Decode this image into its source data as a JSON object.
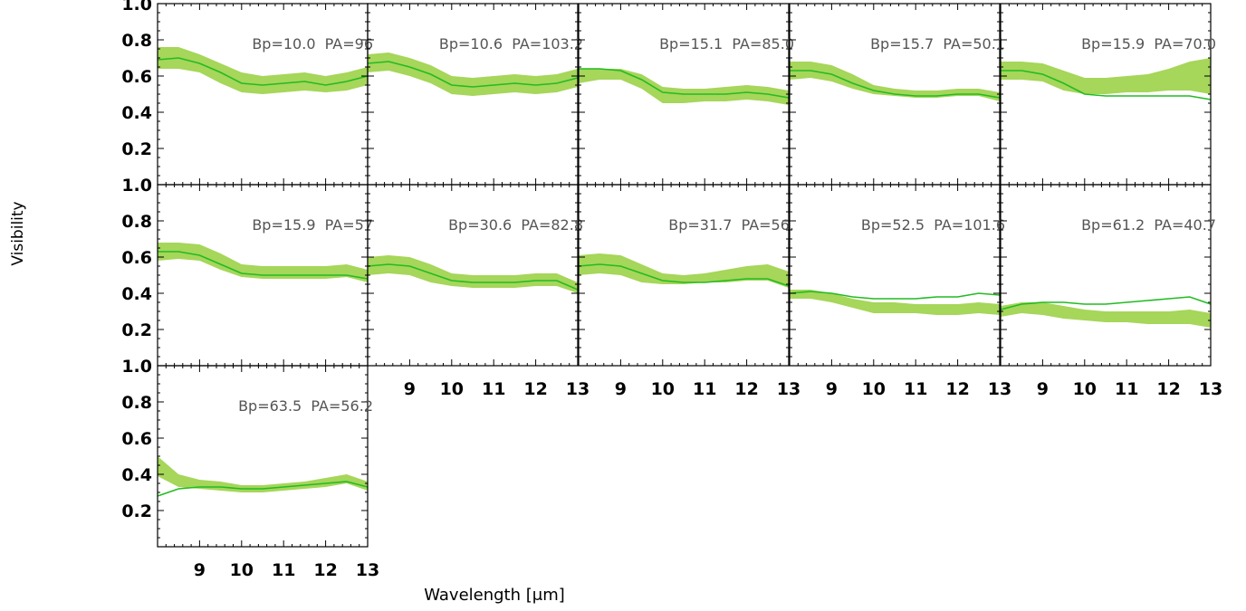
{
  "chart_data": {
    "type": "line",
    "layout": "small-multiples",
    "ylabel": "Visibility",
    "xlabel": "Wavelength [μm]",
    "xlim": [
      8.0,
      13.0
    ],
    "ylim": [
      0.0,
      1.0
    ],
    "xticks": [
      9,
      10,
      11,
      12,
      13
    ],
    "yticks": [
      0.2,
      0.4,
      0.6,
      0.8,
      1.0
    ],
    "xtick_labels": [
      "9",
      "10",
      "11",
      "12",
      "13"
    ],
    "ytick_labels": [
      "0.2",
      "0.4",
      "0.6",
      "0.8",
      "1.0"
    ],
    "colors": {
      "model_line": "#22bb22",
      "band_fill": "#a6d65a"
    },
    "x": [
      8.0,
      8.5,
      9.0,
      9.5,
      10.0,
      10.5,
      11.0,
      11.5,
      12.0,
      12.5,
      13.0
    ],
    "panels": [
      {
        "label": "Bp=10.0  PA=96",
        "model": [
          0.69,
          0.7,
          0.67,
          0.62,
          0.56,
          0.55,
          0.56,
          0.57,
          0.55,
          0.57,
          0.6
        ],
        "band_lo": [
          0.64,
          0.64,
          0.62,
          0.56,
          0.51,
          0.5,
          0.51,
          0.52,
          0.51,
          0.52,
          0.55
        ],
        "band_hi": [
          0.76,
          0.76,
          0.72,
          0.67,
          0.62,
          0.6,
          0.61,
          0.62,
          0.6,
          0.62,
          0.65
        ]
      },
      {
        "label": "Bp=10.6  PA=103.2",
        "model": [
          0.67,
          0.68,
          0.65,
          0.61,
          0.55,
          0.54,
          0.55,
          0.56,
          0.55,
          0.56,
          0.59
        ],
        "band_lo": [
          0.62,
          0.63,
          0.6,
          0.56,
          0.5,
          0.49,
          0.5,
          0.51,
          0.5,
          0.51,
          0.54
        ],
        "band_hi": [
          0.72,
          0.73,
          0.7,
          0.66,
          0.6,
          0.59,
          0.6,
          0.61,
          0.6,
          0.61,
          0.64
        ]
      },
      {
        "label": "Bp=15.1  PA=85.0",
        "model": [
          0.64,
          0.64,
          0.63,
          0.58,
          0.51,
          0.5,
          0.5,
          0.5,
          0.51,
          0.5,
          0.48
        ],
        "band_lo": [
          0.56,
          0.58,
          0.58,
          0.53,
          0.45,
          0.45,
          0.46,
          0.46,
          0.47,
          0.46,
          0.44
        ],
        "band_hi": [
          0.64,
          0.64,
          0.64,
          0.61,
          0.54,
          0.53,
          0.53,
          0.54,
          0.55,
          0.54,
          0.52
        ]
      },
      {
        "label": "Bp=15.7  PA=50.1",
        "model": [
          0.63,
          0.63,
          0.61,
          0.56,
          0.52,
          0.5,
          0.49,
          0.49,
          0.5,
          0.5,
          0.48
        ],
        "band_lo": [
          0.58,
          0.59,
          0.57,
          0.53,
          0.5,
          0.49,
          0.48,
          0.48,
          0.49,
          0.49,
          0.46
        ],
        "band_hi": [
          0.68,
          0.68,
          0.66,
          0.61,
          0.55,
          0.53,
          0.52,
          0.52,
          0.53,
          0.53,
          0.51
        ]
      },
      {
        "label": "Bp=15.9  PA=70.0",
        "model": [
          0.63,
          0.63,
          0.61,
          0.56,
          0.5,
          0.49,
          0.49,
          0.49,
          0.49,
          0.49,
          0.47
        ],
        "band_lo": [
          0.58,
          0.58,
          0.57,
          0.52,
          0.5,
          0.5,
          0.51,
          0.51,
          0.52,
          0.52,
          0.5
        ],
        "band_hi": [
          0.68,
          0.68,
          0.67,
          0.63,
          0.59,
          0.59,
          0.6,
          0.61,
          0.64,
          0.68,
          0.7
        ]
      },
      {
        "label": "Bp=15.9  PA=57",
        "model": [
          0.63,
          0.63,
          0.61,
          0.56,
          0.51,
          0.5,
          0.5,
          0.5,
          0.5,
          0.5,
          0.48
        ],
        "band_lo": [
          0.58,
          0.59,
          0.58,
          0.53,
          0.49,
          0.48,
          0.48,
          0.48,
          0.48,
          0.49,
          0.46
        ],
        "band_hi": [
          0.68,
          0.68,
          0.67,
          0.62,
          0.56,
          0.55,
          0.55,
          0.55,
          0.55,
          0.56,
          0.53
        ]
      },
      {
        "label": "Bp=30.6  PA=82.8",
        "model": [
          0.55,
          0.56,
          0.55,
          0.51,
          0.47,
          0.46,
          0.46,
          0.46,
          0.47,
          0.47,
          0.42
        ],
        "band_lo": [
          0.5,
          0.51,
          0.5,
          0.46,
          0.44,
          0.43,
          0.43,
          0.43,
          0.44,
          0.44,
          0.4
        ],
        "band_hi": [
          0.6,
          0.61,
          0.6,
          0.56,
          0.51,
          0.5,
          0.5,
          0.5,
          0.51,
          0.51,
          0.46
        ]
      },
      {
        "label": "Bp=31.7  PA=56.",
        "model": [
          0.55,
          0.56,
          0.55,
          0.51,
          0.47,
          0.46,
          0.46,
          0.47,
          0.48,
          0.48,
          0.44
        ],
        "band_lo": [
          0.5,
          0.51,
          0.5,
          0.46,
          0.45,
          0.45,
          0.46,
          0.46,
          0.47,
          0.47,
          0.43
        ],
        "band_hi": [
          0.61,
          0.62,
          0.61,
          0.56,
          0.51,
          0.5,
          0.51,
          0.53,
          0.55,
          0.56,
          0.52
        ]
      },
      {
        "label": "Bp=52.5  PA=101.6",
        "model": [
          0.4,
          0.41,
          0.4,
          0.38,
          0.37,
          0.37,
          0.37,
          0.38,
          0.38,
          0.4,
          0.39
        ],
        "band_lo": [
          0.37,
          0.37,
          0.35,
          0.32,
          0.29,
          0.29,
          0.29,
          0.28,
          0.28,
          0.29,
          0.28
        ],
        "band_hi": [
          0.42,
          0.42,
          0.4,
          0.37,
          0.35,
          0.35,
          0.34,
          0.34,
          0.34,
          0.35,
          0.34
        ]
      },
      {
        "label": "Bp=61.2  PA=40.7",
        "model": [
          0.31,
          0.34,
          0.35,
          0.35,
          0.34,
          0.34,
          0.35,
          0.36,
          0.37,
          0.38,
          0.34
        ],
        "band_lo": [
          0.27,
          0.29,
          0.28,
          0.26,
          0.25,
          0.24,
          0.24,
          0.23,
          0.23,
          0.23,
          0.21
        ],
        "band_hi": [
          0.33,
          0.35,
          0.35,
          0.33,
          0.31,
          0.3,
          0.3,
          0.3,
          0.3,
          0.31,
          0.29
        ]
      },
      {
        "label": "Bp=63.5  PA=56.2",
        "model": [
          0.28,
          0.32,
          0.33,
          0.33,
          0.32,
          0.32,
          0.33,
          0.34,
          0.35,
          0.36,
          0.33
        ],
        "band_lo": [
          0.39,
          0.33,
          0.32,
          0.31,
          0.3,
          0.3,
          0.31,
          0.32,
          0.33,
          0.35,
          0.31
        ],
        "band_hi": [
          0.5,
          0.4,
          0.37,
          0.36,
          0.34,
          0.34,
          0.35,
          0.36,
          0.38,
          0.4,
          0.36
        ]
      }
    ]
  }
}
